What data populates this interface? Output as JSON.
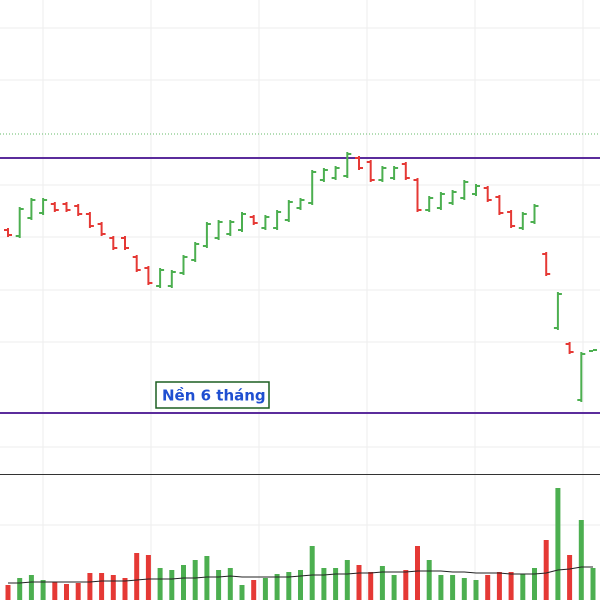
{
  "chart_data": {
    "type": "ohlc",
    "ylim": [
      0,
      470
    ],
    "volume_ylim": [
      0,
      125
    ],
    "up_color": "#4caf50",
    "down_color": "#e53935",
    "open": [
      240,
      234,
      252,
      257,
      266,
      266,
      264,
      256,
      246,
      232,
      232,
      213,
      202,
      184,
      184,
      197,
      210,
      224,
      232,
      236,
      240,
      253,
      242,
      242,
      250,
      262,
      267,
      290,
      292,
      294,
      312,
      308,
      290,
      292,
      306,
      290,
      260,
      262,
      267,
      272,
      276,
      282,
      273,
      258,
      242,
      248,
      216,
      142,
      126,
      70,
      119
    ],
    "high": [
      242,
      263,
      272,
      272,
      268,
      268,
      266,
      258,
      248,
      234,
      234,
      215,
      204,
      202,
      200,
      215,
      228,
      248,
      250,
      250,
      258,
      255,
      255,
      260,
      270,
      272,
      300,
      302,
      304,
      318,
      314,
      310,
      304,
      304,
      308,
      292,
      274,
      278,
      280,
      290,
      286,
      284,
      275,
      260,
      258,
      266,
      218,
      178,
      128,
      118,
      120
    ],
    "low": [
      233,
      232,
      250,
      255,
      258,
      258,
      254,
      242,
      234,
      220,
      220,
      198,
      185,
      182,
      182,
      195,
      208,
      222,
      230,
      234,
      238,
      245,
      240,
      240,
      248,
      260,
      265,
      288,
      290,
      292,
      300,
      288,
      288,
      290,
      290,
      258,
      258,
      260,
      265,
      270,
      274,
      268,
      255,
      242,
      240,
      246,
      194,
      140,
      116,
      68,
      119
    ],
    "close": [
      235,
      261,
      270,
      270,
      260,
      260,
      256,
      244,
      236,
      222,
      222,
      200,
      187,
      200,
      198,
      213,
      226,
      246,
      248,
      248,
      256,
      247,
      253,
      258,
      268,
      270,
      298,
      300,
      302,
      316,
      302,
      290,
      302,
      302,
      292,
      260,
      272,
      276,
      278,
      288,
      284,
      270,
      257,
      244,
      256,
      264,
      196,
      176,
      118,
      116,
      120
    ],
    "volume": [
      15,
      22,
      25,
      20,
      18,
      16,
      17,
      27,
      27,
      25,
      22,
      47,
      45,
      32,
      30,
      35,
      40,
      44,
      30,
      32,
      15,
      20,
      22,
      26,
      28,
      30,
      54,
      32,
      32,
      40,
      35,
      28,
      34,
      25,
      30,
      54,
      40,
      25,
      25,
      22,
      20,
      25,
      28,
      28,
      26,
      32,
      60,
      112,
      45,
      80,
      32
    ],
    "volume_average": [
      17,
      17,
      18,
      18,
      18,
      18,
      18,
      18,
      19,
      19,
      19,
      20,
      21,
      21,
      21,
      22,
      22,
      23,
      23,
      24,
      23,
      23,
      23,
      23,
      23,
      24,
      25,
      25,
      26,
      26,
      27,
      27,
      28,
      28,
      28,
      29,
      29,
      29,
      28,
      28,
      27,
      27,
      27,
      26,
      26,
      26,
      27,
      30,
      31,
      33,
      33
    ],
    "levels": [
      {
        "value": 336,
        "color": "#66bb6a",
        "style": "dotted"
      },
      {
        "value": 312,
        "color": "#5b2c9c",
        "style": "solid"
      },
      {
        "value": 57,
        "color": "#5b2c9c",
        "style": "solid"
      }
    ],
    "annotation": "Nền 6 tháng"
  }
}
